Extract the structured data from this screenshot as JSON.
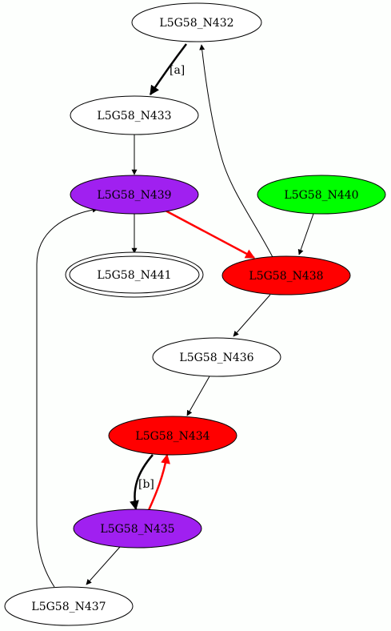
{
  "colors": {
    "purple": "#a020f0",
    "red": "#ff0000",
    "green": "#00ff00",
    "white": "#ffffff",
    "edge_black": "#000000",
    "edge_red": "#ff0000"
  },
  "nodes": {
    "n432": {
      "label": "L5G58_N432",
      "fill": "white",
      "shape": "ellipse"
    },
    "n433": {
      "label": "L5G58_N433",
      "fill": "white",
      "shape": "ellipse"
    },
    "n439": {
      "label": "L5G58_N439",
      "fill": "purple",
      "shape": "ellipse"
    },
    "n440": {
      "label": "L5G58_N440",
      "fill": "green",
      "shape": "ellipse"
    },
    "n441": {
      "label": "L5G58_N441",
      "fill": "white",
      "shape": "doublecircle-ellipse"
    },
    "n438": {
      "label": "L5G58_N438",
      "fill": "red",
      "shape": "ellipse"
    },
    "n436": {
      "label": "L5G58_N436",
      "fill": "white",
      "shape": "ellipse"
    },
    "n434": {
      "label": "L5G58_N434",
      "fill": "red",
      "shape": "ellipse"
    },
    "n435": {
      "label": "L5G58_N435",
      "fill": "purple",
      "shape": "ellipse"
    },
    "n437": {
      "label": "L5G58_N437",
      "fill": "white",
      "shape": "ellipse"
    }
  },
  "edges": [
    {
      "from": "L5G58_N432",
      "to": "L5G58_N433",
      "label": "[a]",
      "color": "black",
      "bold": true
    },
    {
      "from": "L5G58_N433",
      "to": "L5G58_N439",
      "label": "",
      "color": "black",
      "bold": false
    },
    {
      "from": "L5G58_N439",
      "to": "L5G58_N441",
      "label": "",
      "color": "black",
      "bold": false
    },
    {
      "from": "L5G58_N439",
      "to": "L5G58_N438",
      "label": "",
      "color": "red",
      "bold": true
    },
    {
      "from": "L5G58_N440",
      "to": "L5G58_N438",
      "label": "",
      "color": "black",
      "bold": false
    },
    {
      "from": "L5G58_N438",
      "to": "L5G58_N432",
      "label": "",
      "color": "black",
      "bold": false
    },
    {
      "from": "L5G58_N438",
      "to": "L5G58_N436",
      "label": "",
      "color": "black",
      "bold": false
    },
    {
      "from": "L5G58_N436",
      "to": "L5G58_N434",
      "label": "",
      "color": "black",
      "bold": false
    },
    {
      "from": "L5G58_N434",
      "to": "L5G58_N435",
      "label": "[b]",
      "color": "black",
      "bold": true
    },
    {
      "from": "L5G58_N435",
      "to": "L5G58_N434",
      "label": "",
      "color": "red",
      "bold": true
    },
    {
      "from": "L5G58_N435",
      "to": "L5G58_N437",
      "label": "",
      "color": "black",
      "bold": false
    },
    {
      "from": "L5G58_N437",
      "to": "L5G58_N439",
      "label": "",
      "color": "black",
      "bold": false
    }
  ],
  "edge_labels": {
    "a": "[a]",
    "b": "[b]"
  }
}
